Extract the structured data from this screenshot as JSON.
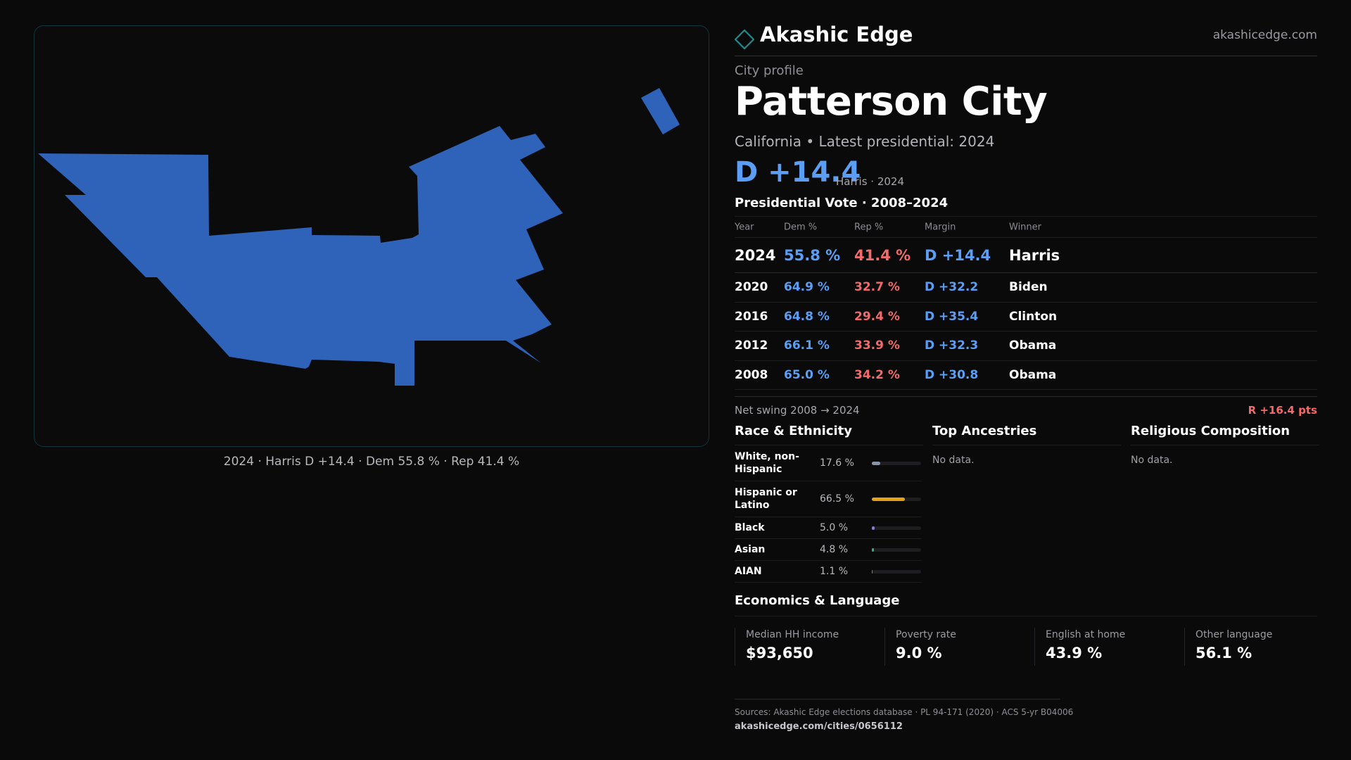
{
  "map": {
    "caption": "2024 · Harris D +14.4 · Dem 55.8 % · Rep 41.4 %",
    "fill_color": "#2f63b9"
  },
  "brand": {
    "name": "Akashic Edge",
    "url": "akashicedge.com",
    "logo_icon": "diamond-outline-icon",
    "accent_color": "#1e8a8a"
  },
  "profile": {
    "kicker": "City profile",
    "city": "Patterson City",
    "subtitle": "California • Latest presidential: 2024",
    "margin": "D +14.4",
    "margin_note": "Harris · 2024"
  },
  "presidential": {
    "title": "Presidential Vote · 2008–2024",
    "headers": {
      "year": "Year",
      "dem": "Dem %",
      "rep": "Rep %",
      "margin": "Margin",
      "winner": "Winner"
    },
    "rows": [
      {
        "year": "2024",
        "dem": "55.8 %",
        "rep": "41.4 %",
        "margin": "D +14.4",
        "winner": "Harris"
      },
      {
        "year": "2020",
        "dem": "64.9 %",
        "rep": "32.7 %",
        "margin": "D +32.2",
        "winner": "Biden"
      },
      {
        "year": "2016",
        "dem": "64.8 %",
        "rep": "29.4 %",
        "margin": "D +35.4",
        "winner": "Clinton"
      },
      {
        "year": "2012",
        "dem": "66.1 %",
        "rep": "33.9 %",
        "margin": "D +32.3",
        "winner": "Obama"
      },
      {
        "year": "2008",
        "dem": "65.0 %",
        "rep": "34.2 %",
        "margin": "D +30.8",
        "winner": "Obama"
      }
    ]
  },
  "swing": {
    "label": "Net swing 2008 → 2024",
    "value": "R +16.4 pts"
  },
  "race": {
    "title": "Race & Ethnicity",
    "rows": [
      {
        "label": "White, non-Hispanic",
        "value": "17.6 %",
        "pct": 17.6,
        "color": "#8a94a8"
      },
      {
        "label": "Hispanic or Latino",
        "value": "66.5 %",
        "pct": 66.5,
        "color": "#e6a11a"
      },
      {
        "label": "Black",
        "value": "5.0 %",
        "pct": 5.0,
        "color": "#8b7ad8"
      },
      {
        "label": "Asian",
        "value": "4.8 %",
        "pct": 4.8,
        "color": "#2bb37a"
      },
      {
        "label": "AIAN",
        "value": "1.1 %",
        "pct": 1.1,
        "color": "#c9682b"
      }
    ]
  },
  "ancestries": {
    "title": "Top Ancestries",
    "empty": "No data."
  },
  "religion": {
    "title": "Religious Composition",
    "empty": "No data."
  },
  "economics": {
    "title": "Economics & Language",
    "cells": [
      {
        "label": "Median HH income",
        "value": "$93,650"
      },
      {
        "label": "Poverty rate",
        "value": "9.0 %"
      },
      {
        "label": "English at home",
        "value": "43.9 %"
      },
      {
        "label": "Other language",
        "value": "56.1 %"
      }
    ]
  },
  "footer": {
    "sources": "Sources: Akashic Edge elections database · PL 94-171 (2020) · ACS 5-yr B04006",
    "url": "akashicedge.com/cities/0656112"
  }
}
